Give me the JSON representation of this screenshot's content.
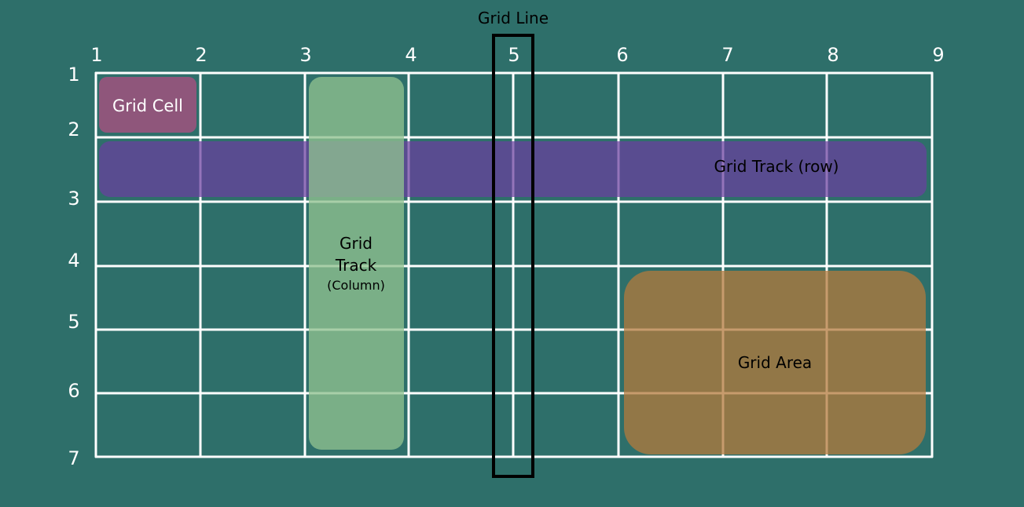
{
  "title": "Grid Line",
  "column_numbers": [
    "1",
    "2",
    "3",
    "4",
    "5",
    "6",
    "7",
    "8",
    "9"
  ],
  "row_numbers": [
    "1",
    "2",
    "3",
    "4",
    "5",
    "6",
    "7"
  ],
  "highlighted_line": "5",
  "labels": {
    "grid_cell": "Grid Cell",
    "track_row": "Grid Track (row)",
    "track_column_line1": "Grid",
    "track_column_line2": "Track",
    "track_column_line3": "(Column)",
    "grid_area": "Grid Area"
  },
  "colors": {
    "background": "#2e6f6a",
    "grid_lines": "#ffffff",
    "grid_cell": "#a0527e",
    "track_row": "#6b3fa0",
    "track_column": "#8fc190",
    "grid_area": "#b47a3c",
    "grid_line_box": "#000000"
  }
}
